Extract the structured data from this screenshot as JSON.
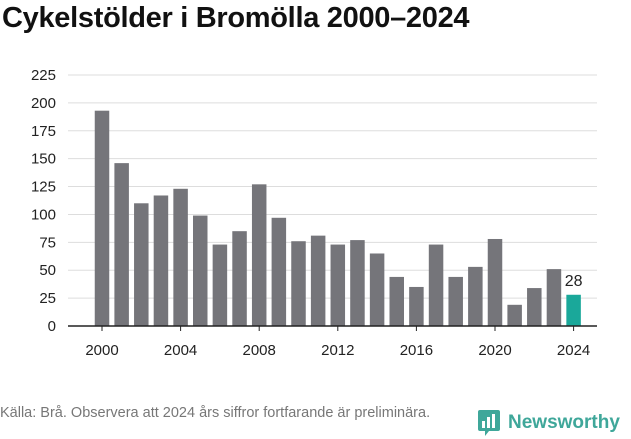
{
  "title": "Cykelstölder i Bromölla 2000–2024",
  "source": "Källa: Brå. Observera att 2024 års siffror fortfarande är preliminära.",
  "brand": "Newsworthy",
  "colors": {
    "bar": "#75757a",
    "highlight": "#1aa89a",
    "grid": "#dddddd",
    "axis": "#222222",
    "brand": "#3fa79a"
  },
  "chart_data": {
    "type": "bar",
    "title": "Cykelstölder i Bromölla 2000–2024",
    "xlabel": "",
    "ylabel": "",
    "categories": [
      2000,
      2001,
      2002,
      2003,
      2004,
      2005,
      2006,
      2007,
      2008,
      2009,
      2010,
      2011,
      2012,
      2013,
      2014,
      2015,
      2016,
      2017,
      2018,
      2019,
      2020,
      2021,
      2022,
      2023,
      2024
    ],
    "values": [
      193,
      146,
      110,
      117,
      123,
      99,
      73,
      85,
      127,
      97,
      76,
      81,
      73,
      77,
      65,
      44,
      35,
      73,
      44,
      53,
      78,
      19,
      34,
      51,
      28
    ],
    "ylim": [
      0,
      225
    ],
    "yticks": [
      0,
      25,
      50,
      75,
      100,
      125,
      150,
      175,
      200,
      225
    ],
    "xticks": [
      2000,
      2004,
      2008,
      2012,
      2016,
      2020,
      2024
    ],
    "highlight_category": 2024,
    "highlight_label": "28",
    "grid": true
  }
}
